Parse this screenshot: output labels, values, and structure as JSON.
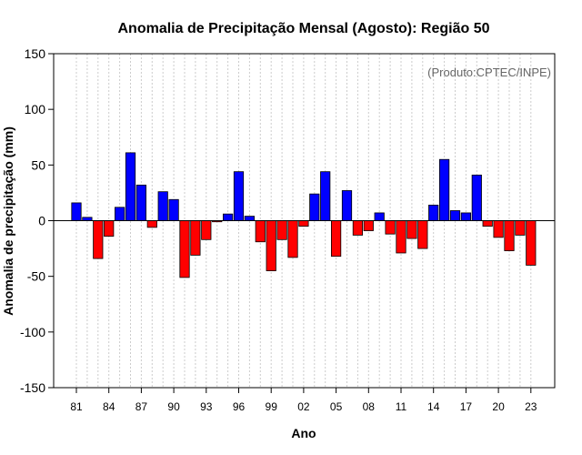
{
  "chart_data": {
    "type": "bar",
    "title": "Anomalia de Precipitação Mensal (Agosto): Região 50",
    "xlabel": "Ano",
    "ylabel": "Anomalia de precipitação (mm)",
    "credit": "(Produto:CPTEC/INPE)",
    "ylim": [
      -150,
      150
    ],
    "yticks": [
      -150,
      -100,
      -50,
      0,
      50,
      100,
      150
    ],
    "ytick_labels": [
      "-150",
      "-100",
      "-50",
      "0",
      "50",
      "100",
      "150"
    ],
    "x_tick_labels": [
      {
        "index": 0,
        "label": "81"
      },
      {
        "index": 3,
        "label": "84"
      },
      {
        "index": 6,
        "label": "87"
      },
      {
        "index": 9,
        "label": "90"
      },
      {
        "index": 12,
        "label": "93"
      },
      {
        "index": 15,
        "label": "96"
      },
      {
        "index": 18,
        "label": "99"
      },
      {
        "index": 21,
        "label": "02"
      },
      {
        "index": 24,
        "label": "05"
      },
      {
        "index": 27,
        "label": "08"
      },
      {
        "index": 30,
        "label": "11"
      },
      {
        "index": 33,
        "label": "14"
      },
      {
        "index": 36,
        "label": "17"
      },
      {
        "index": 39,
        "label": "20"
      },
      {
        "index": 42,
        "label": "23"
      }
    ],
    "categories": [
      "1981",
      "1982",
      "1983",
      "1984",
      "1985",
      "1986",
      "1987",
      "1988",
      "1989",
      "1990",
      "1991",
      "1992",
      "1993",
      "1994",
      "1995",
      "1996",
      "1997",
      "1998",
      "1999",
      "2000",
      "2001",
      "2002",
      "2003",
      "2004",
      "2005",
      "2006",
      "2007",
      "2008",
      "2009",
      "2010",
      "2011",
      "2012",
      "2013",
      "2014",
      "2015",
      "2016",
      "2017",
      "2018",
      "2019",
      "2020",
      "2021",
      "2022",
      "2023"
    ],
    "values": [
      16,
      3,
      -34,
      -14,
      12,
      61,
      32,
      -6,
      26,
      19,
      -51,
      -31,
      -17,
      -1,
      6,
      44,
      4,
      -19,
      -45,
      -17,
      -33,
      -5,
      24,
      44,
      -32,
      27,
      -13,
      -9,
      7,
      -12,
      -29,
      -16,
      -25,
      14,
      55,
      9,
      7,
      41,
      -5,
      -15,
      -27,
      -13,
      -40
    ],
    "positive_color": "#0000ff",
    "negative_color": "#ff0000",
    "grid": "vertical dotted",
    "zero_line": true
  }
}
